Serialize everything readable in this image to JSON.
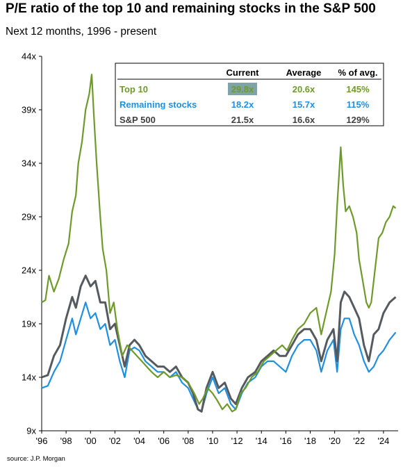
{
  "title": "P/E ratio of the top 10 and remaining stocks in the S&P 500",
  "subtitle": "Next 12 months, 1996 - present",
  "source": "source: J.P. Morgan",
  "chart_data": {
    "type": "line",
    "title": "P/E ratio of the top 10 and remaining stocks in the S&P 500",
    "xlim": [
      1996,
      2025.2
    ],
    "ylim": [
      9,
      44
    ],
    "y_ticks": [
      "9x",
      "14x",
      "19x",
      "24x",
      "29x",
      "34x",
      "39x",
      "44x"
    ],
    "x_ticks": [
      "'96",
      "'98",
      "'00",
      "'02",
      "'04",
      "'06",
      "'08",
      "'10",
      "'12",
      "'14",
      "'16",
      "'18",
      "'20",
      "'22",
      "'24"
    ],
    "grid": false,
    "series": [
      {
        "name": "Top 10",
        "color": "#6e9a2a",
        "x": [
          1996.0,
          1996.3,
          1996.6,
          1997.0,
          1997.4,
          1997.8,
          1998.2,
          1998.5,
          1998.8,
          1999.0,
          1999.3,
          1999.6,
          1999.9,
          2000.1,
          2000.3,
          2000.5,
          2000.8,
          2001.0,
          2001.3,
          2001.6,
          2001.9,
          2002.2,
          2002.6,
          2003.0,
          2003.4,
          2003.8,
          2004.2,
          2004.6,
          2005.0,
          2005.5,
          2006.0,
          2006.5,
          2007.0,
          2007.5,
          2008.0,
          2008.5,
          2008.9,
          2009.2,
          2009.6,
          2010.0,
          2010.4,
          2010.8,
          2011.2,
          2011.6,
          2011.9,
          2012.3,
          2012.7,
          2013.2,
          2013.7,
          2014.2,
          2014.7,
          2015.2,
          2015.7,
          2016.1,
          2016.5,
          2017.0,
          2017.5,
          2018.0,
          2018.5,
          2018.9,
          2019.3,
          2019.7,
          2020.0,
          2020.2,
          2020.5,
          2020.7,
          2020.9,
          2021.2,
          2021.5,
          2021.8,
          2022.0,
          2022.3,
          2022.6,
          2022.8,
          2023.0,
          2023.3,
          2023.6,
          2023.9,
          2024.2,
          2024.5,
          2024.8,
          2025.0
        ],
        "values": [
          21.0,
          21.2,
          23.5,
          22.0,
          23.2,
          25.0,
          26.5,
          29.5,
          31.0,
          34.0,
          36.0,
          39.0,
          40.5,
          42.3,
          38.0,
          34.0,
          29.0,
          26.0,
          24.0,
          20.0,
          21.0,
          18.5,
          16.0,
          17.0,
          16.5,
          16.0,
          15.5,
          15.0,
          14.5,
          14.0,
          14.5,
          14.0,
          14.2,
          14.0,
          13.5,
          12.5,
          11.5,
          12.0,
          13.0,
          12.5,
          11.8,
          11.0,
          11.5,
          10.8,
          11.0,
          12.5,
          13.0,
          14.0,
          14.5,
          15.5,
          16.0,
          16.5,
          17.0,
          16.5,
          17.5,
          18.5,
          19.0,
          20.0,
          20.5,
          18.0,
          20.0,
          22.0,
          25.5,
          30.0,
          35.5,
          32.0,
          29.5,
          30.0,
          29.0,
          27.5,
          25.0,
          23.0,
          21.0,
          20.5,
          21.0,
          24.0,
          27.0,
          27.5,
          28.5,
          29.0,
          30.0,
          29.8
        ]
      },
      {
        "name": "Remaining stocks",
        "color": "#1f8fe0",
        "x": [
          1996.0,
          1996.5,
          1997.0,
          1997.5,
          1998.0,
          1998.5,
          1998.8,
          1999.2,
          1999.6,
          2000.0,
          2000.4,
          2000.8,
          2001.2,
          2001.6,
          2002.0,
          2002.4,
          2002.8,
          2003.2,
          2003.6,
          2004.0,
          2004.5,
          2005.0,
          2005.5,
          2006.0,
          2006.5,
          2007.0,
          2007.5,
          2008.0,
          2008.4,
          2008.8,
          2009.1,
          2009.5,
          2010.0,
          2010.5,
          2011.0,
          2011.5,
          2011.9,
          2012.4,
          2012.9,
          2013.5,
          2014.0,
          2014.5,
          2015.0,
          2015.5,
          2016.0,
          2016.5,
          2017.0,
          2017.5,
          2018.0,
          2018.5,
          2018.9,
          2019.4,
          2019.9,
          2020.2,
          2020.5,
          2020.8,
          2021.2,
          2021.6,
          2022.0,
          2022.4,
          2022.8,
          2023.2,
          2023.6,
          2024.0,
          2024.5,
          2025.0
        ],
        "values": [
          13.0,
          13.2,
          14.5,
          15.5,
          17.5,
          19.5,
          18.0,
          19.5,
          21.0,
          19.5,
          20.0,
          18.5,
          19.0,
          17.0,
          17.5,
          15.5,
          14.0,
          16.5,
          16.8,
          16.5,
          15.5,
          15.0,
          14.5,
          14.5,
          14.0,
          14.5,
          13.5,
          13.0,
          12.0,
          11.0,
          10.8,
          12.5,
          14.0,
          12.5,
          13.0,
          11.5,
          11.0,
          12.5,
          13.5,
          14.0,
          15.0,
          15.5,
          15.5,
          15.0,
          14.5,
          16.0,
          17.0,
          17.5,
          17.5,
          16.5,
          14.5,
          16.5,
          17.5,
          14.5,
          18.5,
          19.5,
          19.5,
          18.0,
          17.0,
          15.5,
          14.5,
          15.0,
          16.0,
          16.5,
          17.5,
          18.2
        ]
      },
      {
        "name": "S&P 500",
        "color": "#555a5f",
        "x": [
          1996.0,
          1996.5,
          1997.0,
          1997.5,
          1998.0,
          1998.5,
          1998.8,
          1999.2,
          1999.6,
          2000.0,
          2000.4,
          2000.8,
          2001.2,
          2001.6,
          2002.0,
          2002.4,
          2002.8,
          2003.2,
          2003.6,
          2004.0,
          2004.5,
          2005.0,
          2005.5,
          2006.0,
          2006.5,
          2007.0,
          2007.5,
          2008.0,
          2008.4,
          2008.8,
          2009.1,
          2009.5,
          2010.0,
          2010.5,
          2011.0,
          2011.5,
          2011.9,
          2012.4,
          2012.9,
          2013.5,
          2014.0,
          2014.5,
          2015.0,
          2015.5,
          2016.0,
          2016.5,
          2017.0,
          2017.5,
          2018.0,
          2018.5,
          2018.9,
          2019.4,
          2019.9,
          2020.2,
          2020.5,
          2020.8,
          2021.2,
          2021.6,
          2022.0,
          2022.4,
          2022.8,
          2023.2,
          2023.6,
          2024.0,
          2024.5,
          2025.0
        ],
        "values": [
          14.0,
          14.2,
          16.0,
          17.0,
          19.5,
          21.5,
          20.5,
          22.5,
          23.5,
          22.5,
          23.0,
          21.0,
          21.0,
          18.5,
          19.0,
          17.0,
          15.0,
          17.0,
          17.5,
          17.0,
          16.0,
          15.5,
          15.0,
          15.0,
          14.5,
          15.0,
          14.0,
          13.5,
          12.5,
          11.0,
          10.8,
          13.0,
          14.5,
          13.0,
          13.5,
          12.0,
          11.5,
          13.0,
          14.0,
          14.5,
          15.5,
          16.0,
          16.5,
          16.0,
          16.0,
          17.0,
          18.0,
          18.5,
          18.5,
          17.5,
          15.5,
          17.5,
          18.5,
          15.5,
          21.0,
          22.0,
          21.5,
          20.5,
          19.5,
          17.0,
          15.5,
          18.0,
          18.5,
          20.0,
          21.0,
          21.5
        ]
      }
    ],
    "table": {
      "headers": [
        "",
        "Current",
        "Average",
        "% of avg."
      ],
      "rows": [
        {
          "label": "Top 10",
          "current": "29.8x",
          "average": "20.6x",
          "pct": "145%",
          "color": "#6e9a2a"
        },
        {
          "label": "Remaining stocks",
          "current": "18.2x",
          "average": "15.7x",
          "pct": "115%",
          "color": "#1f8fe0"
        },
        {
          "label": "S&P 500",
          "current": "21.5x",
          "average": "16.6x",
          "pct": "129%",
          "color": "#404040"
        }
      ]
    }
  }
}
